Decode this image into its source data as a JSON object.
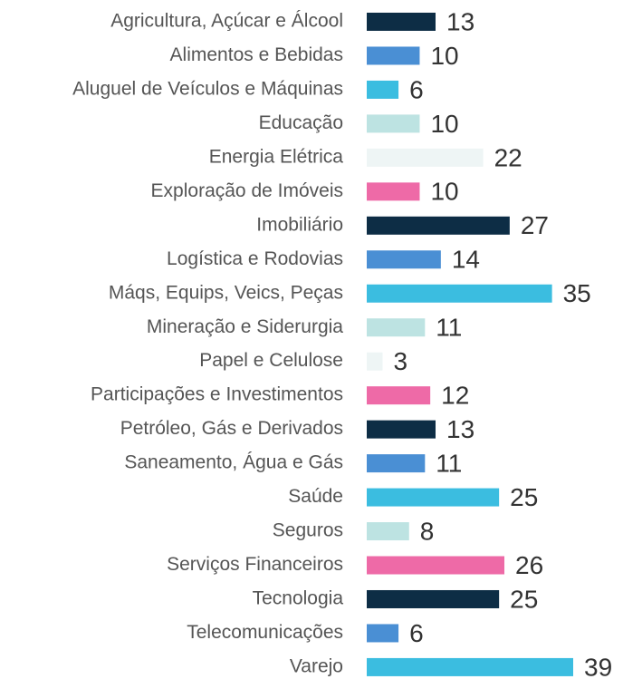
{
  "chart_data": {
    "type": "bar",
    "orientation": "horizontal",
    "categories": [
      "Agricultura, Açúcar e Álcool",
      "Alimentos e Bebidas",
      "Aluguel de Veículos e Máquinas",
      "Educação",
      "Energia Elétrica",
      "Exploração de Imóveis",
      "Imobiliário",
      "Logística e Rodovias",
      "Máqs, Equips, Veics, Peças",
      "Mineração e Siderurgia",
      "Papel e Celulose",
      "Participações e Investimentos",
      "Petróleo, Gás e Derivados",
      "Saneamento, Água e Gás",
      "Saúde",
      "Seguros",
      "Serviços Financeiros",
      "Tecnologia",
      "Telecomunicações",
      "Varejo"
    ],
    "values": [
      13,
      10,
      6,
      10,
      22,
      10,
      27,
      14,
      35,
      11,
      3,
      12,
      13,
      11,
      25,
      8,
      26,
      25,
      6,
      39
    ],
    "colors": [
      "#0d2d45",
      "#4a8fd4",
      "#3bbde0",
      "#bde3e2",
      "#eef5f5",
      "#ee6aa7",
      "#0d2d45",
      "#4a8fd4",
      "#3bbde0",
      "#bde3e2",
      "#eef5f5",
      "#ee6aa7",
      "#0d2d45",
      "#4a8fd4",
      "#3bbde0",
      "#bde3e2",
      "#ee6aa7",
      "#0d2d45",
      "#4a8fd4",
      "#3bbde0"
    ]
  }
}
